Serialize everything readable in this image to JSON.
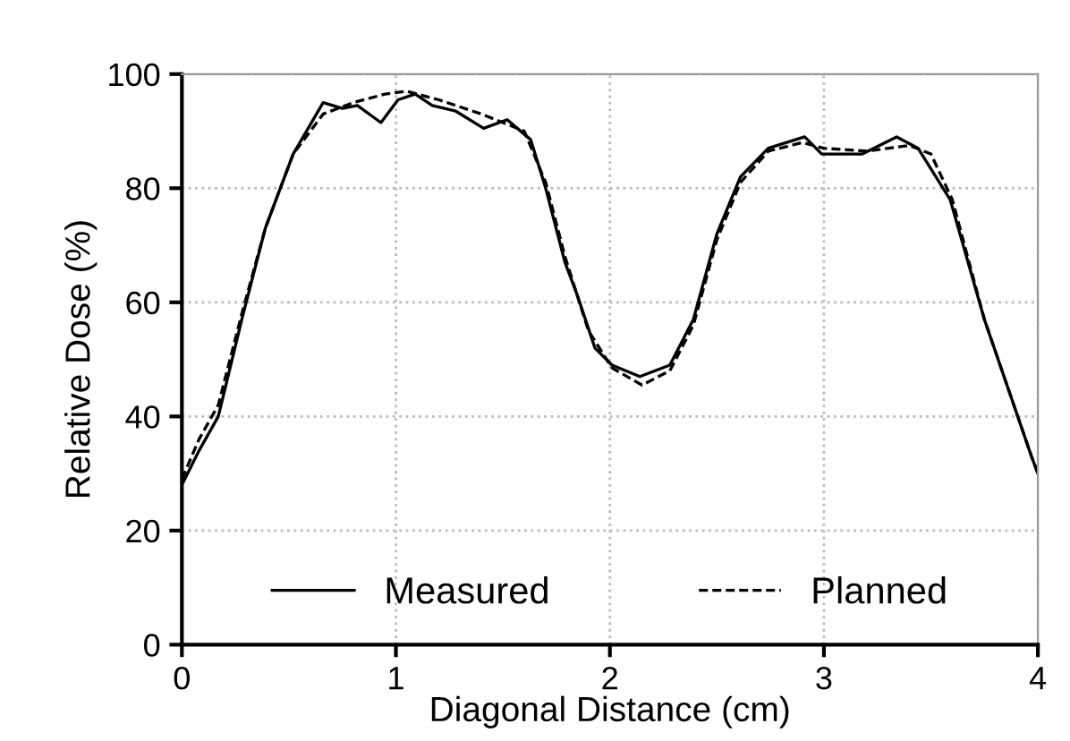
{
  "chart_data": {
    "type": "line",
    "xlabel": "Diagonal Distance (cm)",
    "ylabel": "Relative Dose (%)",
    "xlim": [
      0,
      4
    ],
    "xticks": [
      0,
      1,
      2,
      3,
      4
    ],
    "ylim": [
      0,
      100
    ],
    "yticks": [
      0,
      20,
      40,
      60,
      80,
      100
    ],
    "grid": true,
    "legend": "bottom",
    "marker": "none",
    "series": [
      {
        "name": "Measured",
        "color": "#000000",
        "line_style": "solid",
        "x": [
          0,
          0.08,
          0.17,
          0.28,
          0.39,
          0.52,
          0.66,
          0.75,
          0.82,
          0.93,
          1.01,
          1.09,
          1.17,
          1.28,
          1.41,
          1.52,
          1.63,
          1.7,
          1.79,
          1.85,
          1.93,
          2.01,
          2.14,
          2.28,
          2.39,
          2.5,
          2.61,
          2.74,
          2.91,
          2.99,
          3.18,
          3.34,
          3.44,
          3.59,
          3.75,
          3.86,
          3.97,
          4
        ],
        "values": [
          28,
          34,
          40,
          57,
          73,
          86,
          95,
          94,
          94.5,
          91.5,
          95.5,
          96.5,
          94.5,
          93.5,
          90.5,
          92,
          88.5,
          80,
          67,
          61,
          52,
          49,
          47,
          49,
          57,
          72,
          82,
          87,
          89,
          86,
          86,
          89,
          87,
          78,
          57,
          45,
          33,
          30
        ]
      },
      {
        "name": "Planned",
        "color": "#000000",
        "line_style": "dashed",
        "x": [
          0,
          0.08,
          0.17,
          0.28,
          0.39,
          0.52,
          0.66,
          0.8,
          0.95,
          1.05,
          1.2,
          1.4,
          1.6,
          1.7,
          1.79,
          1.9,
          2.01,
          2.15,
          2.28,
          2.39,
          2.5,
          2.61,
          2.74,
          2.9,
          3.0,
          3.2,
          3.4,
          3.5,
          3.6,
          3.75,
          3.86,
          3.97,
          4
        ],
        "values": [
          29,
          36,
          42,
          58,
          73,
          86,
          93,
          95,
          96.5,
          97,
          95.5,
          93,
          90,
          81,
          68,
          55,
          48.5,
          45.5,
          48,
          56,
          71,
          81,
          86.5,
          88,
          87,
          86.5,
          87.5,
          86,
          78,
          57,
          45,
          33,
          30
        ]
      }
    ]
  }
}
